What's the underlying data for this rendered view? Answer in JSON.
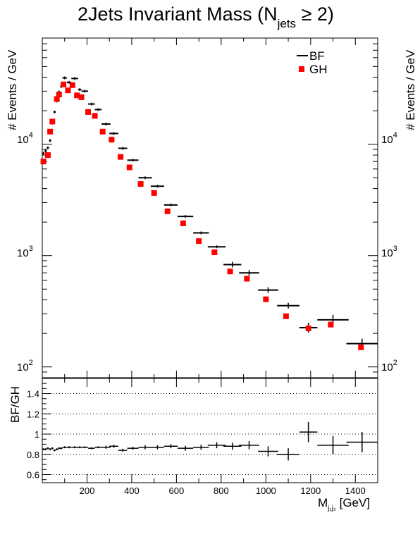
{
  "figure": {
    "title_main": "2Jets Invariant Mass (N",
    "title_sub": "jets",
    "title_rel": " ≥ 2)"
  },
  "chart_data": [
    {
      "type": "scatter",
      "name": "main",
      "ylabel_left": "# Events / GeV",
      "ylabel_right": "# Events / GeV",
      "yscale": "log",
      "ylim": [
        80,
        90000
      ],
      "xlim": [
        0,
        1500
      ],
      "y_ticks": [
        {
          "value": 100,
          "base": "10",
          "exp": "2"
        },
        {
          "value": 1000,
          "base": "10",
          "exp": "3"
        },
        {
          "value": 10000,
          "base": "10",
          "exp": "4"
        }
      ],
      "legend": {
        "position": "top-right",
        "entries": [
          {
            "label": "BF",
            "marker": "line",
            "color": "#000000"
          },
          {
            "label": "GH",
            "marker": "square",
            "color": "#ff0000"
          }
        ]
      },
      "series": [
        {
          "name": "BF",
          "color": "#000000",
          "points": [
            {
              "x": 5,
              "xerr": 5,
              "y": 8300
            },
            {
              "x": 15,
              "xerr": 5,
              "y": 8700
            },
            {
              "x": 25,
              "xerr": 5,
              "y": 9300
            },
            {
              "x": 35,
              "xerr": 5,
              "y": 10800
            },
            {
              "x": 45,
              "xerr": 5,
              "y": 15500
            },
            {
              "x": 55,
              "xerr": 5,
              "y": 19500
            },
            {
              "x": 65,
              "xerr": 5,
              "y": 24500
            },
            {
              "x": 75,
              "xerr": 5,
              "y": 29500
            },
            {
              "x": 85,
              "xerr": 5,
              "y": 33000
            },
            {
              "x": 100,
              "xerr": 10,
              "y": 39500
            },
            {
              "x": 120,
              "xerr": 10,
              "y": 36000
            },
            {
              "x": 145,
              "xerr": 15,
              "y": 39000
            },
            {
              "x": 167.5,
              "xerr": 7.5,
              "y": 31000
            },
            {
              "x": 190,
              "xerr": 15,
              "y": 30000
            },
            {
              "x": 220,
              "xerr": 15,
              "y": 23000
            },
            {
              "x": 250,
              "xerr": 15,
              "y": 20500
            },
            {
              "x": 285,
              "xerr": 20,
              "y": 15200
            },
            {
              "x": 320,
              "xerr": 20,
              "y": 12500
            },
            {
              "x": 360,
              "xerr": 20,
              "y": 9200
            },
            {
              "x": 405,
              "xerr": 25,
              "y": 7200
            },
            {
              "x": 460,
              "xerr": 30,
              "y": 5000
            },
            {
              "x": 515,
              "xerr": 30,
              "y": 4200
            },
            {
              "x": 575,
              "xerr": 30,
              "y": 2850
            },
            {
              "x": 640,
              "xerr": 35,
              "y": 2250
            },
            {
              "x": 710,
              "xerr": 35,
              "y": 1600
            },
            {
              "x": 780,
              "xerr": 40,
              "y": 1200
            },
            {
              "x": 850,
              "xerr": 40,
              "y": 830
            },
            {
              "x": 925,
              "xerr": 45,
              "y": 700
            },
            {
              "x": 1010,
              "xerr": 45,
              "y": 490
            },
            {
              "x": 1100,
              "xerr": 50,
              "y": 355
            },
            {
              "x": 1190,
              "xerr": 40,
              "y": 225
            },
            {
              "x": 1300,
              "xerr": 70,
              "y": 265
            },
            {
              "x": 1430,
              "xerr": 70,
              "y": 162
            }
          ]
        },
        {
          "name": "GH",
          "color": "#ff0000",
          "points": [
            {
              "x": 5,
              "y": 7000
            },
            {
              "x": 25,
              "y": 8000
            },
            {
              "x": 35,
              "y": 13000
            },
            {
              "x": 45,
              "y": 16000
            },
            {
              "x": 65,
              "y": 25500
            },
            {
              "x": 75,
              "y": 28000
            },
            {
              "x": 95,
              "y": 34500
            },
            {
              "x": 115,
              "y": 30500
            },
            {
              "x": 135,
              "y": 34000
            },
            {
              "x": 155,
              "y": 27500
            },
            {
              "x": 175,
              "y": 26500
            },
            {
              "x": 205,
              "y": 19500
            },
            {
              "x": 235,
              "y": 18000
            },
            {
              "x": 270,
              "y": 13000
            },
            {
              "x": 310,
              "y": 11000
            },
            {
              "x": 350,
              "y": 7700
            },
            {
              "x": 390,
              "y": 6200
            },
            {
              "x": 440,
              "y": 4400
            },
            {
              "x": 500,
              "y": 3650
            },
            {
              "x": 560,
              "y": 2500
            },
            {
              "x": 630,
              "y": 1950
            },
            {
              "x": 700,
              "y": 1350
            },
            {
              "x": 770,
              "y": 1070
            },
            {
              "x": 840,
              "y": 720
            },
            {
              "x": 915,
              "y": 620
            },
            {
              "x": 1000,
              "y": 405
            },
            {
              "x": 1090,
              "y": 285
            },
            {
              "x": 1190,
              "y": 222
            },
            {
              "x": 1290,
              "y": 240
            },
            {
              "x": 1425,
              "y": 150
            }
          ]
        }
      ]
    },
    {
      "type": "scatter",
      "name": "ratio",
      "ylabel": "BF/GH",
      "xlabel_main": "M",
      "xlabel_sub": "j₁j₂",
      "xlabel_unit": " [GeV]",
      "xlim": [
        0,
        1500
      ],
      "ylim": [
        0.52,
        1.55
      ],
      "x_ticks": [
        "200",
        "400",
        "600",
        "800",
        "1000",
        "1200",
        "1400"
      ],
      "y_ticks": [
        "0.6",
        "0.8",
        "1",
        "1.2",
        "1.4"
      ],
      "grid": "horizontal-dotted",
      "series": [
        {
          "name": "BF",
          "color": "#000000",
          "points": [
            {
              "x": 5,
              "xerr": 5,
              "y": 0.85,
              "yerr": 0.01
            },
            {
              "x": 15,
              "xerr": 5,
              "y": 0.85,
              "yerr": 0.01
            },
            {
              "x": 25,
              "xerr": 5,
              "y": 0.86,
              "yerr": 0.01
            },
            {
              "x": 35,
              "xerr": 5,
              "y": 0.85,
              "yerr": 0.01
            },
            {
              "x": 45,
              "xerr": 5,
              "y": 0.86,
              "yerr": 0.01
            },
            {
              "x": 55,
              "xerr": 5,
              "y": 0.84,
              "yerr": 0.01
            },
            {
              "x": 65,
              "xerr": 5,
              "y": 0.85,
              "yerr": 0.01
            },
            {
              "x": 75,
              "xerr": 5,
              "y": 0.86,
              "yerr": 0.01
            },
            {
              "x": 85,
              "xerr": 5,
              "y": 0.86,
              "yerr": 0.01
            },
            {
              "x": 100,
              "xerr": 10,
              "y": 0.87,
              "yerr": 0.01
            },
            {
              "x": 120,
              "xerr": 10,
              "y": 0.87,
              "yerr": 0.01
            },
            {
              "x": 145,
              "xerr": 15,
              "y": 0.87,
              "yerr": 0.01
            },
            {
              "x": 167.5,
              "xerr": 7.5,
              "y": 0.87,
              "yerr": 0.01
            },
            {
              "x": 190,
              "xerr": 15,
              "y": 0.87,
              "yerr": 0.01
            },
            {
              "x": 220,
              "xerr": 15,
              "y": 0.86,
              "yerr": 0.01
            },
            {
              "x": 250,
              "xerr": 15,
              "y": 0.87,
              "yerr": 0.01
            },
            {
              "x": 285,
              "xerr": 20,
              "y": 0.87,
              "yerr": 0.015
            },
            {
              "x": 320,
              "xerr": 20,
              "y": 0.88,
              "yerr": 0.015
            },
            {
              "x": 360,
              "xerr": 20,
              "y": 0.84,
              "yerr": 0.015
            },
            {
              "x": 405,
              "xerr": 25,
              "y": 0.86,
              "yerr": 0.015
            },
            {
              "x": 460,
              "xerr": 30,
              "y": 0.87,
              "yerr": 0.02
            },
            {
              "x": 515,
              "xerr": 30,
              "y": 0.87,
              "yerr": 0.02
            },
            {
              "x": 575,
              "xerr": 30,
              "y": 0.88,
              "yerr": 0.02
            },
            {
              "x": 640,
              "xerr": 35,
              "y": 0.86,
              "yerr": 0.025
            },
            {
              "x": 710,
              "xerr": 35,
              "y": 0.87,
              "yerr": 0.025
            },
            {
              "x": 780,
              "xerr": 40,
              "y": 0.89,
              "yerr": 0.03
            },
            {
              "x": 850,
              "xerr": 40,
              "y": 0.88,
              "yerr": 0.035
            },
            {
              "x": 925,
              "xerr": 45,
              "y": 0.89,
              "yerr": 0.04
            },
            {
              "x": 1010,
              "xerr": 45,
              "y": 0.83,
              "yerr": 0.05
            },
            {
              "x": 1100,
              "xerr": 50,
              "y": 0.8,
              "yerr": 0.06
            },
            {
              "x": 1190,
              "xerr": 40,
              "y": 1.02,
              "yerr": 0.1
            },
            {
              "x": 1300,
              "xerr": 70,
              "y": 0.89,
              "yerr": 0.09
            },
            {
              "x": 1430,
              "xerr": 70,
              "y": 0.92,
              "yerr": 0.1
            }
          ]
        }
      ]
    }
  ]
}
